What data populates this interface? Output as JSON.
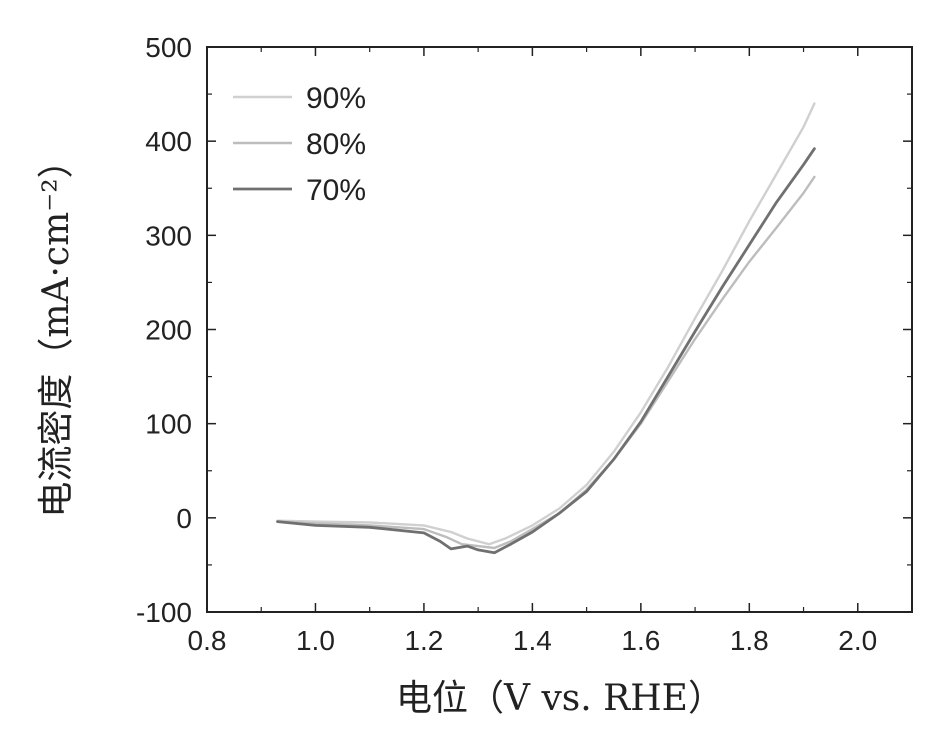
{
  "chart_data": {
    "type": "line",
    "title": "",
    "xlabel": "电位（V vs. RHE）",
    "ylabel": "电流密度（mA·cm⁻²）",
    "xlim": [
      0.8,
      2.1
    ],
    "ylim": [
      -100,
      500
    ],
    "xticks": [
      0.8,
      1.0,
      1.2,
      1.4,
      1.6,
      1.8,
      2.0
    ],
    "xtick_labels": [
      "0.8",
      "1.0",
      "1.2",
      "1.4",
      "1.6",
      "1.8",
      "2.0"
    ],
    "yticks": [
      -100,
      0,
      100,
      200,
      300,
      400,
      500
    ],
    "ytick_labels": [
      "-100",
      "0",
      "100",
      "200",
      "300",
      "400",
      "500"
    ],
    "grid": false,
    "legend_position": "top-left",
    "series": [
      {
        "name": "90%",
        "color": "#d0d0d0",
        "x": [
          0.93,
          1.0,
          1.1,
          1.2,
          1.25,
          1.28,
          1.32,
          1.35,
          1.4,
          1.45,
          1.5,
          1.55,
          1.6,
          1.65,
          1.7,
          1.75,
          1.8,
          1.85,
          1.9,
          1.92
        ],
        "y": [
          -3,
          -4,
          -5,
          -8,
          -15,
          -22,
          -28,
          -22,
          -8,
          10,
          35,
          70,
          112,
          160,
          212,
          262,
          315,
          365,
          415,
          440
        ]
      },
      {
        "name": "80%",
        "color": "#bdbdbd",
        "x": [
          0.93,
          1.0,
          1.1,
          1.2,
          1.24,
          1.27,
          1.3,
          1.33,
          1.36,
          1.4,
          1.45,
          1.5,
          1.55,
          1.6,
          1.65,
          1.7,
          1.75,
          1.8,
          1.85,
          1.9,
          1.92
        ],
        "y": [
          -4,
          -6,
          -8,
          -12,
          -20,
          -28,
          -30,
          -32,
          -25,
          -12,
          5,
          30,
          62,
          100,
          145,
          190,
          232,
          272,
          308,
          345,
          362
        ]
      },
      {
        "name": "70%",
        "color": "#707070",
        "x": [
          0.93,
          1.0,
          1.1,
          1.2,
          1.23,
          1.25,
          1.28,
          1.3,
          1.33,
          1.36,
          1.4,
          1.45,
          1.5,
          1.55,
          1.6,
          1.65,
          1.7,
          1.75,
          1.8,
          1.85,
          1.9,
          1.92
        ],
        "y": [
          -4,
          -8,
          -10,
          -16,
          -25,
          -33,
          -30,
          -34,
          -37,
          -28,
          -15,
          5,
          28,
          62,
          102,
          150,
          198,
          245,
          290,
          335,
          375,
          392
        ]
      }
    ]
  }
}
